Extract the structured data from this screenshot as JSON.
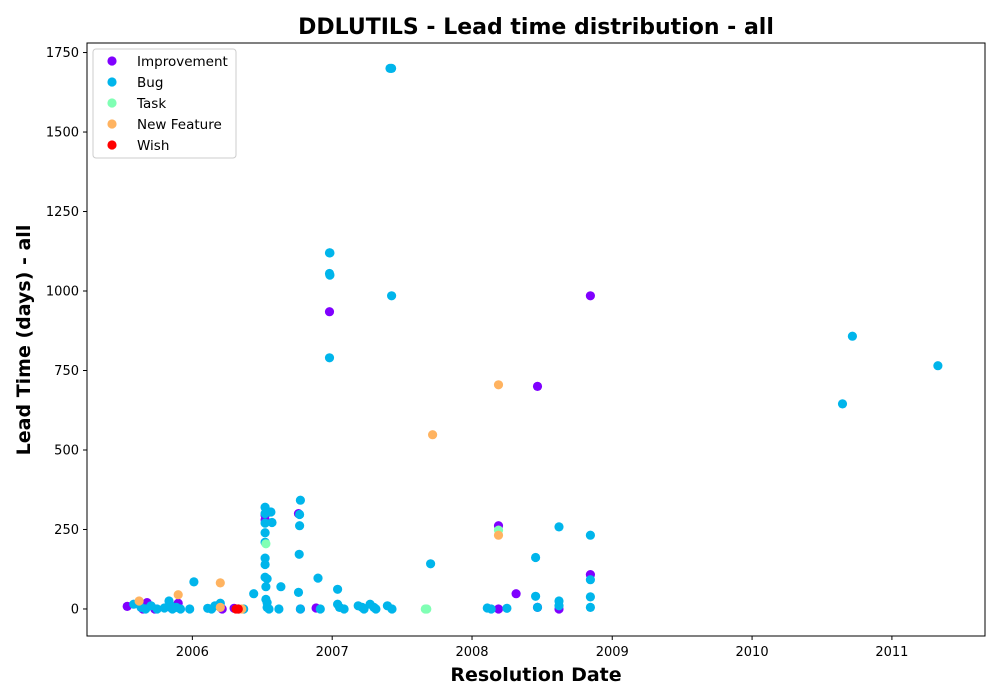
{
  "chart_data": {
    "type": "scatter",
    "title": "DDLUTILS - Lead time distribution - all",
    "xlabel": "Resolution Date",
    "ylabel": "Lead Time (days) - all",
    "xlim": [
      "2005-04-01",
      "2011-09-01"
    ],
    "ylim": [
      -85,
      1780
    ],
    "x_ticks": [
      "2006",
      "2007",
      "2008",
      "2009",
      "2010",
      "2011"
    ],
    "x_tick_dates": [
      "2006-01-01",
      "2007-01-01",
      "2008-01-01",
      "2009-01-01",
      "2010-01-01",
      "2011-01-01"
    ],
    "y_ticks": [
      0,
      250,
      500,
      750,
      1000,
      1250,
      1500,
      1750
    ],
    "grid": false,
    "legend_position": "upper-left",
    "series": [
      {
        "name": "Improvement",
        "color": "#8000ff",
        "x": [
          "2005-07-15",
          "2005-08-25",
          "2005-09-05",
          "2005-09-25",
          "2005-11-05",
          "2005-11-25",
          "2006-03-20",
          "2006-04-20",
          "2006-07-10",
          "2006-07-10",
          "2006-10-05",
          "2006-10-10",
          "2006-11-20",
          "2006-12-25",
          "2008-03-10",
          "2008-03-10",
          "2008-04-25",
          "2008-06-20",
          "2008-06-20",
          "2008-08-15",
          "2008-11-05",
          "2008-11-05"
        ],
        "y": [
          8,
          0,
          20,
          0,
          5,
          18,
          0,
          2,
          280,
          295,
          300,
          0,
          3,
          935,
          262,
          0,
          48,
          700,
          5,
          0,
          108,
          985
        ]
      },
      {
        "name": "Bug",
        "color": "#00b5eb",
        "x": [
          "2005-08-01",
          "2005-08-20",
          "2005-09-01",
          "2005-09-15",
          "2005-10-01",
          "2005-10-20",
          "2005-11-01",
          "2005-11-05",
          "2005-11-10",
          "2005-11-20",
          "2005-12-01",
          "2005-12-25",
          "2006-01-05",
          "2006-02-10",
          "2006-02-20",
          "2006-03-01",
          "2006-03-15",
          "2006-05-01",
          "2006-05-15",
          "2006-06-10",
          "2006-07-10",
          "2006-07-10",
          "2006-07-10",
          "2006-07-10",
          "2006-07-10",
          "2006-07-10",
          "2006-07-10",
          "2006-07-10",
          "2006-07-12",
          "2006-07-12",
          "2006-07-15",
          "2006-07-15",
          "2006-07-15",
          "2006-07-20",
          "2006-07-25",
          "2006-07-28",
          "2006-08-15",
          "2006-08-20",
          "2006-10-05",
          "2006-10-07",
          "2006-10-08",
          "2006-10-08",
          "2006-10-10",
          "2006-10-10",
          "2006-11-25",
          "2006-12-01",
          "2006-12-25",
          "2006-12-25",
          "2006-12-25",
          "2006-12-26",
          "2006-12-26",
          "2007-01-15",
          "2007-01-15",
          "2007-01-20",
          "2007-02-01",
          "2007-03-10",
          "2007-03-20",
          "2007-03-25",
          "2007-04-10",
          "2007-04-20",
          "2007-04-25",
          "2007-05-25",
          "2007-06-01",
          "2007-06-05",
          "2007-06-05",
          "2007-06-06",
          "2007-09-15",
          "2008-02-10",
          "2008-02-20",
          "2008-04-01",
          "2008-06-15",
          "2008-06-15",
          "2008-06-20",
          "2008-08-15",
          "2008-08-15",
          "2008-08-15",
          "2008-11-05",
          "2008-11-05",
          "2008-11-05",
          "2008-11-05",
          "2010-08-25",
          "2010-09-20",
          "2011-05-01"
        ],
        "y": [
          15,
          5,
          0,
          10,
          0,
          3,
          25,
          12,
          0,
          5,
          0,
          0,
          85,
          2,
          0,
          10,
          18,
          0,
          0,
          48,
          300,
          320,
          270,
          240,
          210,
          160,
          140,
          100,
          70,
          30,
          5,
          20,
          95,
          0,
          305,
          272,
          0,
          70,
          52,
          172,
          262,
          297,
          342,
          0,
          97,
          0,
          1120,
          1055,
          790,
          1120,
          1050,
          62,
          15,
          5,
          0,
          10,
          5,
          0,
          15,
          5,
          0,
          10,
          1700,
          1700,
          985,
          0,
          142,
          3,
          0,
          2,
          40,
          162,
          5,
          258,
          25,
          10,
          232,
          92,
          38,
          5,
          645,
          858,
          765
        ]
      },
      {
        "name": "Task",
        "color": "#80ffb4",
        "x": [
          "2006-07-12",
          "2007-09-01",
          "2007-09-05",
          "2008-03-10"
        ],
        "y": [
          205,
          0,
          0,
          248
        ]
      },
      {
        "name": "New Feature",
        "color": "#ffb360",
        "x": [
          "2005-08-15",
          "2005-11-25",
          "2006-03-15",
          "2006-03-15",
          "2006-05-10",
          "2007-09-20",
          "2008-03-10",
          "2008-03-10"
        ],
        "y": [
          25,
          45,
          82,
          5,
          0,
          548,
          705,
          232
        ]
      },
      {
        "name": "Wish",
        "color": "#ff0000",
        "x": [
          "2006-04-25",
          "2006-05-01"
        ],
        "y": [
          0,
          0
        ]
      }
    ]
  }
}
